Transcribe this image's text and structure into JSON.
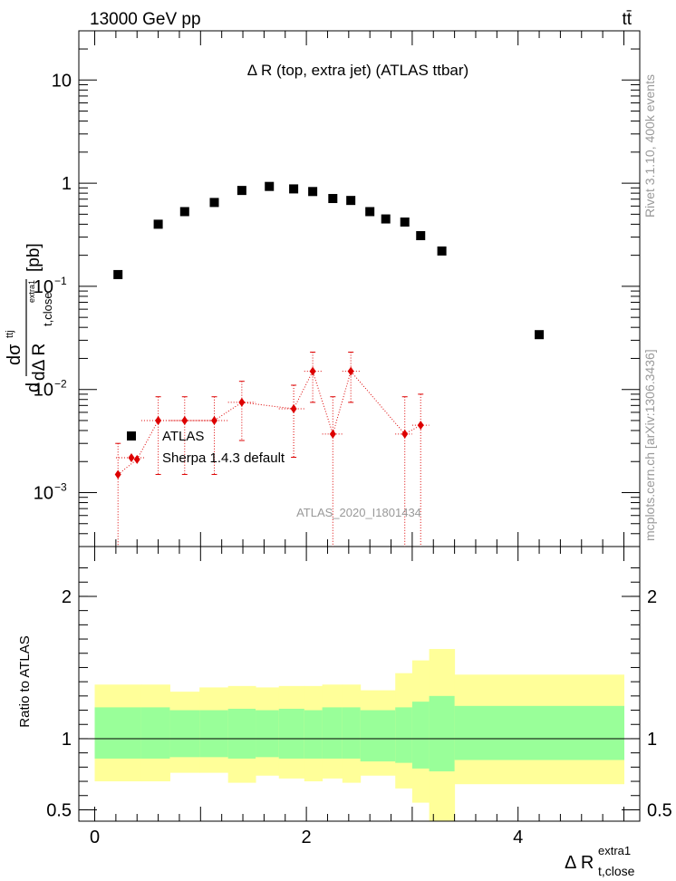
{
  "header": {
    "energy_label": "13000 GeV pp",
    "process_label": "tt̄"
  },
  "side_labels": {
    "rivet": "Rivet 3.1.10,  400k events",
    "mcplots": "mcplots.cern.ch [arXiv:1306.3436]"
  },
  "colors": {
    "data": "#000000",
    "mc": "#dd0000",
    "band_outer": "#ffff99",
    "band_inner": "#99ff99",
    "watermark": "#999999"
  },
  "chart_data": [
    {
      "type": "scatter",
      "title": "Δ R (top, extra jet) (ATLAS ttbar)",
      "ylabel": {
        "d": "d",
        "sigma": "dσ",
        "sigma_sup": "ttj",
        "denom": "dΔ R",
        "denom_sub": "t,close",
        "denom_sup": "extra1",
        "unit": "[pb]"
      },
      "yscale": "log",
      "ylim": [
        0.0003,
        30
      ],
      "xlim": [
        -0.15,
        5.15
      ],
      "y_ticks": [
        {
          "value": 10,
          "base": "10",
          "exp": ""
        },
        {
          "value": 1,
          "base": "1",
          "exp": ""
        },
        {
          "value": 0.1,
          "base": "10",
          "exp": "−1"
        },
        {
          "value": 0.01,
          "base": "10",
          "exp": "−2"
        },
        {
          "value": 0.001,
          "base": "10",
          "exp": "−3"
        }
      ],
      "watermark": "ATLAS_2020_I1801434",
      "legend": [
        {
          "label": "ATLAS",
          "marker": "square"
        },
        {
          "label": "Sherpa 1.4.3 default",
          "marker": "diamond"
        }
      ],
      "series": [
        {
          "name": "ATLAS",
          "points": [
            {
              "x": 0.22,
              "y": 0.13
            },
            {
              "x": 0.6,
              "y": 0.4
            },
            {
              "x": 0.85,
              "y": 0.53
            },
            {
              "x": 1.13,
              "y": 0.65
            },
            {
              "x": 1.39,
              "y": 0.85
            },
            {
              "x": 1.65,
              "y": 0.93
            },
            {
              "x": 1.88,
              "y": 0.88
            },
            {
              "x": 2.06,
              "y": 0.83
            },
            {
              "x": 2.25,
              "y": 0.71
            },
            {
              "x": 2.42,
              "y": 0.68
            },
            {
              "x": 2.6,
              "y": 0.53
            },
            {
              "x": 2.75,
              "y": 0.45
            },
            {
              "x": 2.93,
              "y": 0.42
            },
            {
              "x": 3.08,
              "y": 0.31
            },
            {
              "x": 3.28,
              "y": 0.22
            },
            {
              "x": 4.2,
              "y": 0.034
            }
          ]
        },
        {
          "name": "Sherpa 1.4.3 default",
          "points": [
            {
              "x": 0.22,
              "y": 0.0015,
              "xlo": 0.2,
              "xhi": 0.24,
              "ylo": 0.0001,
              "yhi": 0.003
            },
            {
              "x": 0.4,
              "y": 0.0021,
              "xlo": 0.38,
              "xhi": 0.42,
              "ylo": 0.0021,
              "yhi": 0.0021
            },
            {
              "x": 0.6,
              "y": 0.005,
              "xlo": 0.44,
              "xhi": 0.71,
              "ylo": 0.0015,
              "yhi": 0.0085
            },
            {
              "x": 0.85,
              "y": 0.005,
              "xlo": 0.71,
              "xhi": 0.99,
              "ylo": 0.0015,
              "yhi": 0.0085
            },
            {
              "x": 1.13,
              "y": 0.005,
              "xlo": 0.99,
              "xhi": 1.26,
              "ylo": 0.0015,
              "yhi": 0.0085
            },
            {
              "x": 1.39,
              "y": 0.0075,
              "xlo": 1.26,
              "xhi": 1.52,
              "ylo": 0.0032,
              "yhi": 0.012
            },
            {
              "x": 1.88,
              "y": 0.0065,
              "xlo": 1.74,
              "xhi": 1.98,
              "ylo": 0.0022,
              "yhi": 0.011
            },
            {
              "x": 2.06,
              "y": 0.015,
              "xlo": 1.98,
              "xhi": 2.15,
              "ylo": 0.0075,
              "yhi": 0.023
            },
            {
              "x": 2.25,
              "y": 0.0037,
              "xlo": 2.15,
              "xhi": 2.34,
              "ylo": 0.0001,
              "yhi": 0.0085
            },
            {
              "x": 2.42,
              "y": 0.015,
              "xlo": 2.34,
              "xhi": 2.51,
              "ylo": 0.0075,
              "yhi": 0.023
            },
            {
              "x": 2.93,
              "y": 0.0037,
              "xlo": 2.84,
              "xhi": 3.0,
              "ylo": 0.0001,
              "yhi": 0.0085
            },
            {
              "x": 3.08,
              "y": 0.0045,
              "xlo": 3.0,
              "xhi": 3.16,
              "ylo": 0.0001,
              "yhi": 0.009
            }
          ]
        }
      ]
    },
    {
      "type": "area",
      "ylabel": "Ratio to ATLAS",
      "xlabel": {
        "main": "Δ R",
        "sub": "t,close",
        "sup": "extra1"
      },
      "ylim": [
        0.42,
        2.35
      ],
      "xlim": [
        -0.15,
        5.15
      ],
      "reference_line": 1,
      "x_ticks": [
        "0",
        "2",
        "4"
      ],
      "x_tick_values": [
        0,
        2,
        4
      ],
      "y_ticks": [
        "0.5",
        "1",
        "2"
      ],
      "y_tick_values": [
        0.5,
        1,
        2
      ],
      "bands": [
        {
          "xlo": 0.0,
          "xhi": 0.44,
          "inner": [
            0.86,
            1.22
          ],
          "outer": [
            0.7,
            1.38
          ]
        },
        {
          "xlo": 0.44,
          "xhi": 0.71,
          "inner": [
            0.86,
            1.22
          ],
          "outer": [
            0.7,
            1.38
          ]
        },
        {
          "xlo": 0.71,
          "xhi": 0.99,
          "inner": [
            0.87,
            1.2
          ],
          "outer": [
            0.76,
            1.33
          ]
        },
        {
          "xlo": 0.99,
          "xhi": 1.26,
          "inner": [
            0.87,
            1.2
          ],
          "outer": [
            0.76,
            1.36
          ]
        },
        {
          "xlo": 1.26,
          "xhi": 1.52,
          "inner": [
            0.86,
            1.21
          ],
          "outer": [
            0.69,
            1.37
          ]
        },
        {
          "xlo": 1.52,
          "xhi": 1.74,
          "inner": [
            0.87,
            1.2
          ],
          "outer": [
            0.74,
            1.36
          ]
        },
        {
          "xlo": 1.74,
          "xhi": 1.98,
          "inner": [
            0.86,
            1.21
          ],
          "outer": [
            0.72,
            1.37
          ]
        },
        {
          "xlo": 1.98,
          "xhi": 2.15,
          "inner": [
            0.86,
            1.2
          ],
          "outer": [
            0.7,
            1.37
          ]
        },
        {
          "xlo": 2.15,
          "xhi": 2.34,
          "inner": [
            0.86,
            1.22
          ],
          "outer": [
            0.72,
            1.38
          ]
        },
        {
          "xlo": 2.34,
          "xhi": 2.51,
          "inner": [
            0.86,
            1.22
          ],
          "outer": [
            0.69,
            1.38
          ]
        },
        {
          "xlo": 2.51,
          "xhi": 2.84,
          "inner": [
            0.84,
            1.2
          ],
          "outer": [
            0.74,
            1.34
          ]
        },
        {
          "xlo": 2.84,
          "xhi": 3.0,
          "inner": [
            0.83,
            1.22
          ],
          "outer": [
            0.65,
            1.46
          ]
        },
        {
          "xlo": 3.0,
          "xhi": 3.16,
          "inner": [
            0.79,
            1.26
          ],
          "outer": [
            0.55,
            1.55
          ]
        },
        {
          "xlo": 3.16,
          "xhi": 3.4,
          "inner": [
            0.77,
            1.3
          ],
          "outer": [
            0.42,
            1.63
          ]
        },
        {
          "xlo": 3.4,
          "xhi": 5.0,
          "inner": [
            0.85,
            1.23
          ],
          "outer": [
            0.68,
            1.45
          ]
        }
      ]
    }
  ]
}
